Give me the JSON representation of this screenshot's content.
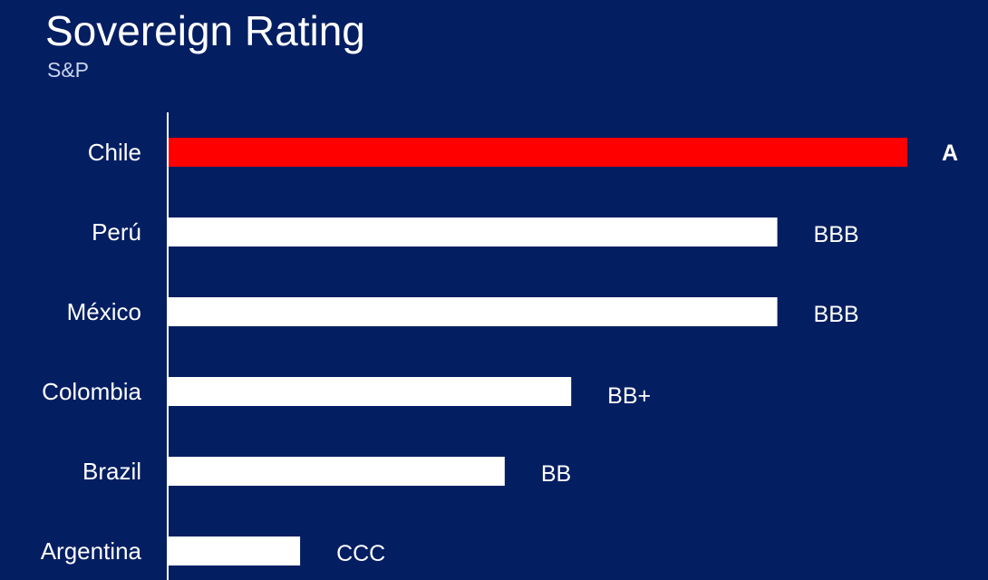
{
  "title": "Sovereign Rating",
  "subtitle": "S&P",
  "colors": {
    "background": "#041e62",
    "highlight": "#ff0000",
    "bar": "#ffffff",
    "text": "#ffffff"
  },
  "chart_data": {
    "type": "bar",
    "orientation": "horizontal",
    "title": "Sovereign Rating",
    "subtitle": "S&P",
    "categories": [
      "Chile",
      "Perú",
      "México",
      "Colombia",
      "Brazil",
      "Argentina"
    ],
    "values": [
      1.0,
      0.824,
      0.824,
      0.545,
      0.455,
      0.178
    ],
    "labels": [
      "A",
      "BBB",
      "BBB",
      "BB+",
      "BB",
      "CCC"
    ],
    "highlight": [
      "Chile"
    ],
    "xlim": [
      0,
      1
    ],
    "grid": false,
    "legend": "none"
  }
}
